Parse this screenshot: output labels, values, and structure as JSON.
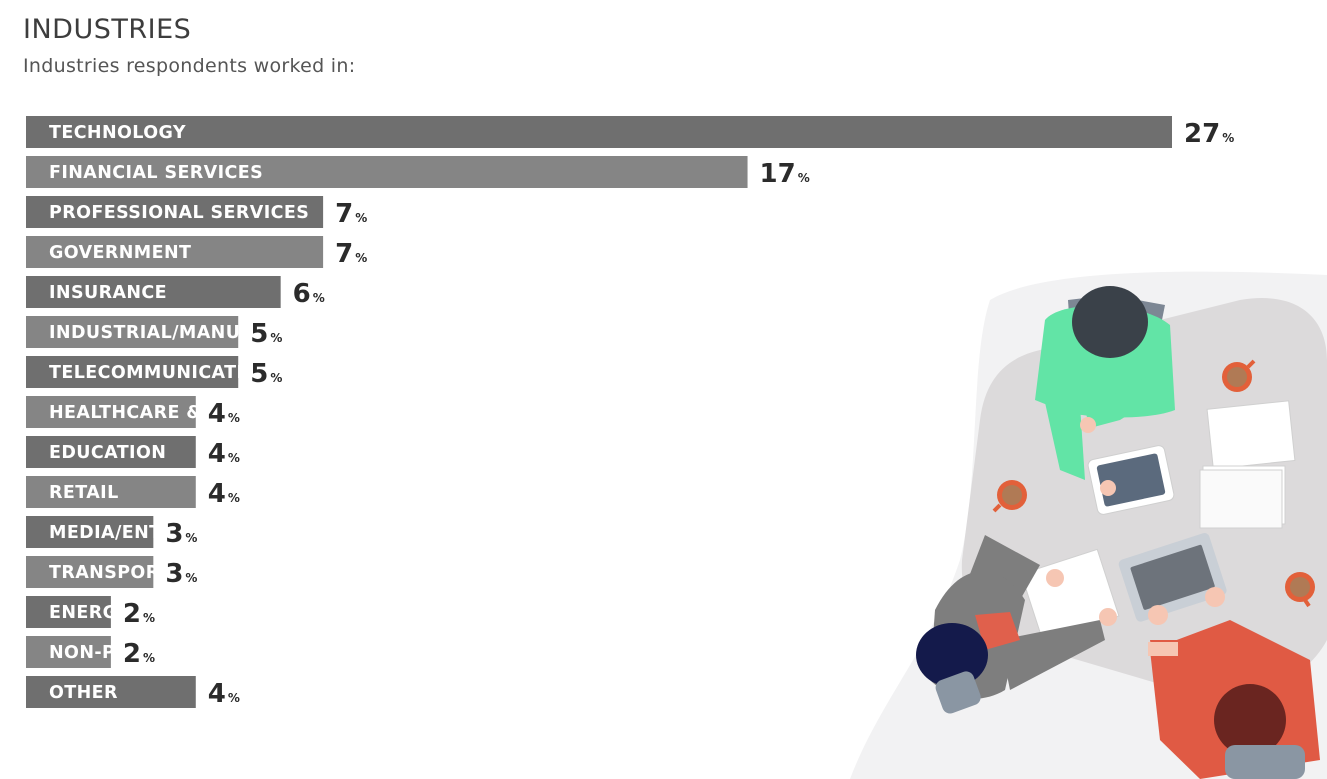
{
  "header": {
    "title": "INDUSTRIES",
    "subtitle": "Industries respondents worked in:"
  },
  "colors": {
    "bar_dark": "#6f6f6f",
    "bar_light": "#858585",
    "value_text": "#2b2b2b"
  },
  "chart_data": {
    "type": "bar",
    "orientation": "horizontal",
    "title": "INDUSTRIES",
    "subtitle": "Industries respondents worked in:",
    "value_suffix": "%",
    "categories": [
      "TECHNOLOGY",
      "FINANCIAL SERVICES",
      "PROFESSIONAL SERVICES",
      "GOVERNMENT",
      "INSURANCE",
      "INDUSTRIAL/MANUFACTURING",
      "TELECOMMUNICATIONS",
      "HEALTHCARE & PHARMACEUTICALS",
      "EDUCATION",
      "RETAIL",
      "MEDIA/ENTERTAINMENT",
      "TRANSPORTATION",
      "ENERGY",
      "NON-PROFIT",
      "OTHER"
    ],
    "values": [
      27,
      17,
      7,
      7,
      6,
      5,
      5,
      4,
      4,
      4,
      3,
      3,
      2,
      2,
      4
    ],
    "data_labels": [
      "27",
      "17",
      "7",
      "7",
      "6",
      "5",
      "5",
      "4",
      "4",
      "4",
      "3",
      "3",
      "2",
      "2",
      "4"
    ],
    "grid": false,
    "legend": "none"
  }
}
